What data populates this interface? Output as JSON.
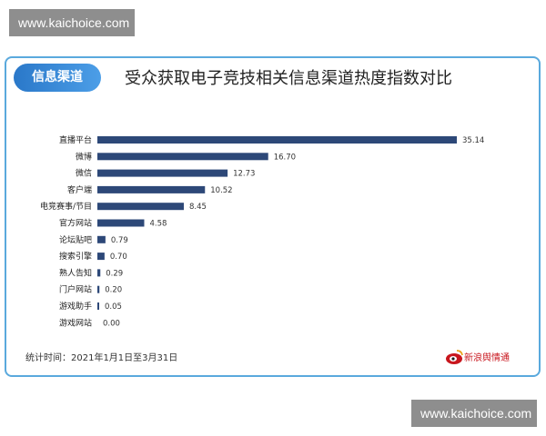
{
  "watermarks": {
    "top": "www.kaichoice.com",
    "bottom": "www.kaichoice.com"
  },
  "card": {
    "tag": "信息渠道"
  },
  "footnote": "统计时间：2021年1月1日至3月31日",
  "logo": {
    "icon_name": "sina-eye-logo",
    "text": "新浪舆情通"
  },
  "colors": {
    "bar": "#2d4878",
    "border": "#5aa9dd",
    "tag": "#2a78c9",
    "logo": "#c8161d"
  },
  "chart_data": {
    "type": "bar",
    "orientation": "horizontal",
    "title": "受众获取电子竞技相关信息渠道热度指数对比",
    "categories": [
      "直播平台",
      "微博",
      "微信",
      "客户端",
      "电竞赛事/节目",
      "官方网站",
      "论坛贴吧",
      "搜索引擎",
      "熟人告知",
      "门户网站",
      "游戏助手",
      "游戏网站"
    ],
    "values": [
      35.14,
      16.7,
      12.73,
      10.52,
      8.45,
      4.58,
      0.79,
      0.7,
      0.29,
      0.2,
      0.05,
      0.0
    ],
    "value_labels": [
      "35.14",
      "16.70",
      "12.73",
      "10.52",
      "8.45",
      "4.58",
      "0.79",
      "0.70",
      "0.29",
      "0.20",
      "0.05",
      "0.00"
    ],
    "xlim": [
      0,
      35.14
    ],
    "grid": false,
    "legend": "none"
  }
}
